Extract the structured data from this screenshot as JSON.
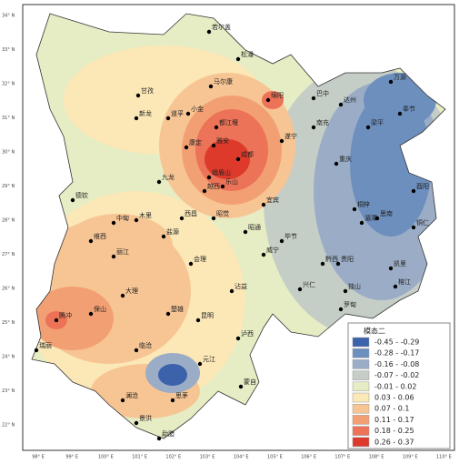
{
  "map": {
    "lat_labels": [
      "34° N",
      "33° N",
      "32° N",
      "31° N",
      "30° N",
      "29° N",
      "28° N",
      "27° N",
      "26° N",
      "25° N",
      "24° N",
      "23° N",
      "22° N"
    ],
    "lon_labels": [
      "98° E",
      "99° E",
      "100° E",
      "101° E",
      "102° E",
      "103° E",
      "104° E",
      "105° E",
      "106° E",
      "107° E",
      "108° E",
      "109° E",
      "110° E"
    ],
    "cities": [
      "若尔盖",
      "松潘",
      "马尔康",
      "甘孜",
      "新龙",
      "道孚",
      "小金",
      "都江堰",
      "绵阳",
      "巴中",
      "万源",
      "南充",
      "达州",
      "梁平",
      "奉节",
      "遂宁",
      "雅安",
      "康定",
      "成都",
      "乐山",
      "峨眉山",
      "九龙",
      "越西",
      "西昌",
      "昭觉",
      "宜宾",
      "重庆",
      "酉阳",
      "德钦",
      "中甸",
      "木里",
      "盐源",
      "维西",
      "丽江",
      "会理",
      "毕节",
      "威宁",
      "桐梓",
      "湄潭",
      "思南",
      "铜仁",
      "黔西",
      "贵阳",
      "凯里",
      "榕江",
      "独山",
      "兴仁",
      "罗甸",
      "腾冲",
      "保山",
      "大理",
      "楚雄",
      "昆明",
      "沾益",
      "泸西",
      "元江",
      "蒙自",
      "临沧",
      "澜沧",
      "思茅",
      "景洪",
      "勐腊",
      "瑞丽",
      "昭通"
    ]
  },
  "legend": {
    "title": "模态二",
    "items": [
      {
        "label": "-0.45 - -0.29",
        "color": "#3b62aa"
      },
      {
        "label": "-0.28 - -0.17",
        "color": "#6d8fbe"
      },
      {
        "label": "-0.16 - -0.08",
        "color": "#9badc6"
      },
      {
        "label": "-0.07 - -0.02",
        "color": "#c5cec6"
      },
      {
        "label": "-0.01 - 0.02",
        "color": "#e6ecc4"
      },
      {
        "label": "0.03 - 0.06",
        "color": "#fbe8b6"
      },
      {
        "label": "0.07 - 0.1",
        "color": "#f7c594"
      },
      {
        "label": "0.11 - 0.17",
        "color": "#f2a073"
      },
      {
        "label": "0.18 - 0.25",
        "color": "#ec7357"
      },
      {
        "label": "0.26 - 0.37",
        "color": "#dd3a2b"
      }
    ]
  }
}
